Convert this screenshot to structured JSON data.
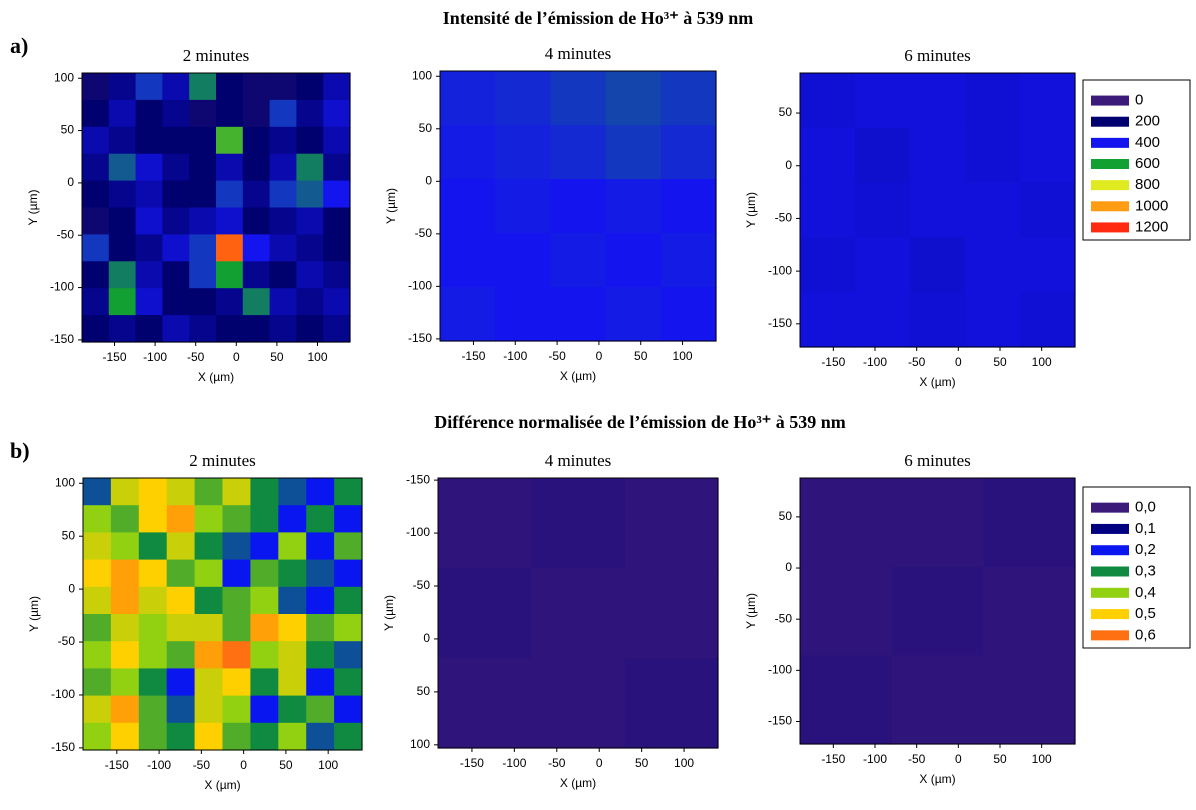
{
  "figure": {
    "rows": [
      {
        "label": "a)",
        "title": "Intensité de l’émission de Ho³⁺ à 539 nm"
      },
      {
        "label": "b)",
        "title": "Différence normalisée de l’émission de Ho³⁺ à 539 nm"
      }
    ],
    "legends": [
      {
        "levels": [
          0,
          200,
          400,
          600,
          800,
          1000,
          1200
        ],
        "colors": [
          "#3b1a7a",
          "#00006e",
          "#1414ee",
          "#12a032",
          "#e0ea20",
          "#ff9c12",
          "#ff2a10"
        ]
      },
      {
        "levels": [
          {
            "value": 0,
            "label": "0,0"
          },
          {
            "value": 0.1,
            "label": "0,1"
          },
          {
            "value": 0.2,
            "label": "0,2"
          },
          {
            "value": 0.3,
            "label": "0,3"
          },
          {
            "value": 0.4,
            "label": "0,4"
          },
          {
            "value": 0.5,
            "label": "0,5"
          },
          {
            "value": 0.6,
            "label": "0,6"
          }
        ],
        "colors": [
          "#3b1a7a",
          "#000080",
          "#0a16f0",
          "#108a40",
          "#92d012",
          "#ffd000",
          "#ff7012"
        ]
      }
    ]
  },
  "chart_data": [
    {
      "type": "heatmap",
      "title": "2 minutes",
      "xlabel": "X (µm)",
      "ylabel": "Y (µm)",
      "xlim": [
        -190,
        140
      ],
      "ylim": [
        -152,
        105
      ],
      "xticks": [
        -150,
        -100,
        -50,
        0,
        50,
        100
      ],
      "yticks": [
        100,
        50,
        0,
        -50,
        -100,
        -150
      ],
      "z": [
        [
          150,
          250,
          450,
          300,
          550,
          200,
          150,
          150,
          200,
          300
        ],
        [
          200,
          300,
          200,
          250,
          150,
          200,
          150,
          450,
          250,
          350
        ],
        [
          300,
          250,
          200,
          200,
          200,
          650,
          200,
          250,
          200,
          300
        ],
        [
          250,
          500,
          350,
          250,
          200,
          300,
          200,
          300,
          550,
          250
        ],
        [
          200,
          250,
          300,
          200,
          200,
          450,
          250,
          450,
          500,
          400
        ],
        [
          150,
          200,
          350,
          250,
          300,
          350,
          200,
          250,
          300,
          200
        ],
        [
          450,
          200,
          250,
          350,
          450,
          1100,
          400,
          300,
          250,
          200
        ],
        [
          200,
          550,
          300,
          200,
          450,
          600,
          250,
          200,
          300,
          250
        ],
        [
          250,
          600,
          350,
          200,
          200,
          250,
          550,
          300,
          250,
          300
        ],
        [
          200,
          250,
          200,
          300,
          250,
          200,
          200,
          250,
          200,
          250
        ]
      ]
    },
    {
      "type": "heatmap",
      "title": "4 minutes",
      "xlabel": "X (µm)",
      "ylabel": "Y (µm)",
      "xlim": [
        -190,
        140
      ],
      "ylim": [
        -152,
        105
      ],
      "xticks": [
        -150,
        -100,
        -50,
        0,
        50,
        100
      ],
      "yticks": [
        100,
        50,
        0,
        -50,
        -100,
        -150
      ],
      "z": [
        [
          420,
          430,
          450,
          470,
          450
        ],
        [
          410,
          420,
          430,
          450,
          430
        ],
        [
          400,
          410,
          400,
          410,
          400
        ],
        [
          400,
          400,
          410,
          400,
          410
        ],
        [
          410,
          400,
          400,
          410,
          400
        ]
      ]
    },
    {
      "type": "heatmap",
      "title": "6 minutes",
      "xlabel": "X (µm)",
      "ylabel": "Y (µm)",
      "xlim": [
        -190,
        140
      ],
      "ylim": [
        -172,
        88
      ],
      "xticks": [
        -150,
        -100,
        -50,
        0,
        50,
        100
      ],
      "yticks": [
        50,
        0,
        -50,
        -100,
        -150
      ],
      "z": [
        [
          360,
          370,
          370,
          360,
          370
        ],
        [
          370,
          350,
          370,
          360,
          370
        ],
        [
          370,
          360,
          370,
          370,
          360
        ],
        [
          360,
          370,
          350,
          370,
          370
        ],
        [
          370,
          370,
          360,
          370,
          360
        ]
      ]
    },
    {
      "type": "heatmap",
      "title": "2 minutes",
      "xlabel": "X (µm)",
      "ylabel": "Y (µm)",
      "xlim": [
        -190,
        140
      ],
      "ylim": [
        -152,
        105
      ],
      "xticks": [
        -150,
        -100,
        -50,
        0,
        50,
        100
      ],
      "yticks": [
        100,
        50,
        0,
        -50,
        -100,
        -150
      ],
      "z": [
        [
          0.25,
          0.45,
          0.5,
          0.45,
          0.35,
          0.45,
          0.3,
          0.25,
          0.2,
          0.3
        ],
        [
          0.4,
          0.35,
          0.5,
          0.55,
          0.4,
          0.35,
          0.3,
          0.2,
          0.3,
          0.2
        ],
        [
          0.45,
          0.4,
          0.3,
          0.45,
          0.3,
          0.25,
          0.2,
          0.4,
          0.2,
          0.35
        ],
        [
          0.5,
          0.55,
          0.5,
          0.35,
          0.4,
          0.2,
          0.35,
          0.3,
          0.25,
          0.2
        ],
        [
          0.45,
          0.55,
          0.45,
          0.5,
          0.3,
          0.35,
          0.4,
          0.25,
          0.2,
          0.3
        ],
        [
          0.35,
          0.45,
          0.4,
          0.45,
          0.45,
          0.35,
          0.55,
          0.5,
          0.35,
          0.4
        ],
        [
          0.4,
          0.5,
          0.4,
          0.35,
          0.55,
          0.6,
          0.4,
          0.45,
          0.3,
          0.25
        ],
        [
          0.35,
          0.4,
          0.3,
          0.2,
          0.45,
          0.5,
          0.3,
          0.45,
          0.2,
          0.3
        ],
        [
          0.45,
          0.55,
          0.35,
          0.25,
          0.45,
          0.4,
          0.2,
          0.3,
          0.35,
          0.2
        ],
        [
          0.4,
          0.5,
          0.35,
          0.3,
          0.5,
          0.35,
          0.3,
          0.4,
          0.25,
          0.3
        ]
      ]
    },
    {
      "type": "heatmap",
      "title": "4 minutes",
      "xlabel": "X (µm)",
      "ylabel": "Y (µm)",
      "xlim": [
        -190,
        140
      ],
      "ylim": [
        103,
        -152
      ],
      "xticks": [
        -150,
        -100,
        -50,
        0,
        50,
        100
      ],
      "yticks": [
        -150,
        -100,
        -50,
        0,
        50,
        100
      ],
      "z": [
        [
          0.02,
          0.03,
          0.02
        ],
        [
          0.03,
          0.02,
          0.02
        ],
        [
          0.02,
          0.02,
          0.03
        ]
      ]
    },
    {
      "type": "heatmap",
      "title": "6 minutes",
      "xlabel": "X (µm)",
      "ylabel": "Y (µm)",
      "xlim": [
        -190,
        140
      ],
      "ylim": [
        -172,
        88
      ],
      "xticks": [
        -150,
        -100,
        -50,
        0,
        50,
        100
      ],
      "yticks": [
        50,
        0,
        -50,
        -100,
        -150
      ],
      "z": [
        [
          0.02,
          0.02,
          0.03
        ],
        [
          0.02,
          0.03,
          0.02
        ],
        [
          0.03,
          0.02,
          0.02
        ]
      ]
    }
  ]
}
